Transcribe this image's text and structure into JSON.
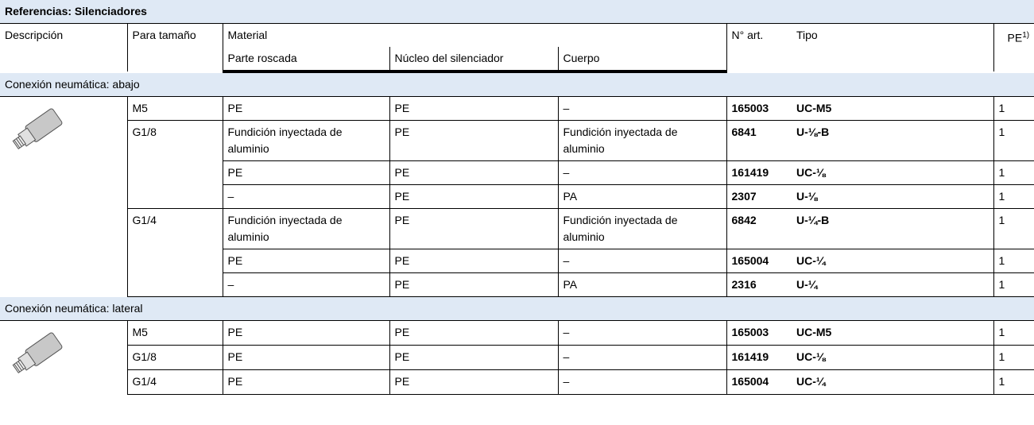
{
  "title": "Referencias: Silenciadores",
  "header": {
    "descripcion": "Descripción",
    "para_tamano": "Para tamaño",
    "material": "Material",
    "parte_roscada": "Parte roscada",
    "nucleo": "Núcleo del silenciador",
    "cuerpo": "Cuerpo",
    "n_art": "N° art.",
    "tipo": "Tipo",
    "pe": "PE",
    "pe_note": "1)"
  },
  "sections": [
    {
      "title": "Conexión neumática: abajo",
      "groups": [
        {
          "size": "M5",
          "rows": [
            [
              "PE",
              "PE",
              "–",
              165003,
              "UC-M5",
              1
            ]
          ]
        },
        {
          "size": "G1/8",
          "rows": [
            [
              "Fundición inyectada de aluminio",
              "PE",
              "Fundición inyectada de aluminio",
              6841,
              "U-⅛-B",
              1
            ],
            [
              "PE",
              "PE",
              "–",
              161419,
              "UC-⅛",
              1
            ],
            [
              "–",
              "PE",
              "PA",
              2307,
              "U-⅛",
              1
            ]
          ]
        },
        {
          "size": "G1/4",
          "rows": [
            [
              "Fundición inyectada de aluminio",
              "PE",
              "Fundición inyectada de aluminio",
              6842,
              "U-¼-B",
              1
            ],
            [
              "PE",
              "PE",
              "–",
              165004,
              "UC-¼",
              1
            ],
            [
              "–",
              "PE",
              "PA",
              2316,
              "U-¼",
              1
            ]
          ]
        }
      ]
    },
    {
      "title": "Conexión neumática: lateral",
      "groups": [
        {
          "size": "M5",
          "rows": [
            [
              "PE",
              "PE",
              "–",
              165003,
              "UC-M5",
              1
            ]
          ]
        },
        {
          "size": "G1/8",
          "rows": [
            [
              "PE",
              "PE",
              "–",
              161419,
              "UC-⅛",
              1
            ]
          ]
        },
        {
          "size": "G1/4",
          "rows": [
            [
              "PE",
              "PE",
              "–",
              165004,
              "UC-¼",
              1
            ]
          ]
        }
      ]
    }
  ]
}
